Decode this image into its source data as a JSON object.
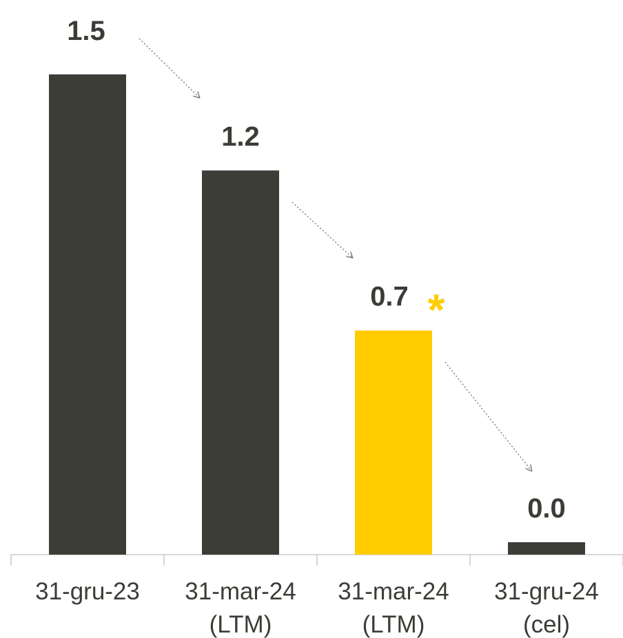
{
  "colors": {
    "bar_dark": "#3d3d38",
    "bar_highlight": "#ffcc00",
    "text_dark": "#3c3c37",
    "axis": "#c8c8c8",
    "arrow": "#808080"
  },
  "chart_data": {
    "type": "bar",
    "title": "",
    "xlabel": "",
    "ylabel": "",
    "categories": [
      [
        "31-gru-23"
      ],
      [
        "31-mar-24",
        "(LTM)"
      ],
      [
        "31-mar-24",
        "(LTM)"
      ],
      [
        "31-gru-24",
        "(cel)"
      ]
    ],
    "values": [
      1.5,
      1.2,
      0.7,
      0.0
    ],
    "value_labels": [
      "1.5",
      "1.2",
      "0.7",
      "0.0"
    ],
    "highlight_index": 2,
    "highlight_marker": "*",
    "ylim": [
      0,
      1.5
    ],
    "grid": false,
    "legend": "none",
    "arrows": "dotted trend arrows between consecutive bars"
  }
}
